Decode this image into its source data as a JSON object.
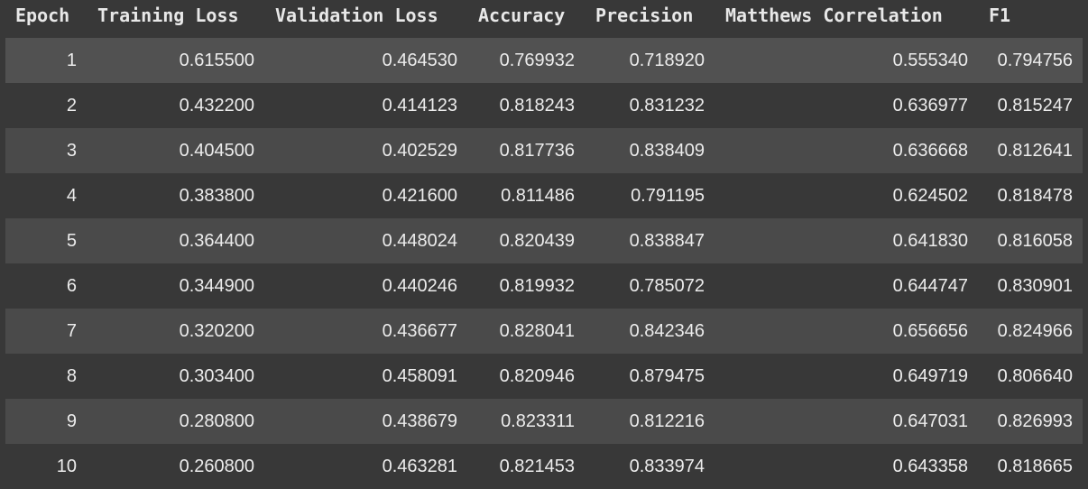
{
  "table": {
    "columns": [
      "Epoch",
      "Training Loss",
      "Validation Loss",
      "Accuracy",
      "Precision",
      "Matthews Correlation",
      "F1"
    ],
    "rows": [
      [
        "1",
        "0.615500",
        "0.464530",
        "0.769932",
        "0.718920",
        "0.555340",
        "0.794756"
      ],
      [
        "2",
        "0.432200",
        "0.414123",
        "0.818243",
        "0.831232",
        "0.636977",
        "0.815247"
      ],
      [
        "3",
        "0.404500",
        "0.402529",
        "0.817736",
        "0.838409",
        "0.636668",
        "0.812641"
      ],
      [
        "4",
        "0.383800",
        "0.421600",
        "0.811486",
        "0.791195",
        "0.624502",
        "0.818478"
      ],
      [
        "5",
        "0.364400",
        "0.448024",
        "0.820439",
        "0.838847",
        "0.641830",
        "0.816058"
      ],
      [
        "6",
        "0.344900",
        "0.440246",
        "0.819932",
        "0.785072",
        "0.644747",
        "0.830901"
      ],
      [
        "7",
        "0.320200",
        "0.436677",
        "0.828041",
        "0.842346",
        "0.656656",
        "0.824966"
      ],
      [
        "8",
        "0.303400",
        "0.458091",
        "0.820946",
        "0.879475",
        "0.649719",
        "0.806640"
      ],
      [
        "9",
        "0.280800",
        "0.438679",
        "0.823311",
        "0.812216",
        "0.647031",
        "0.826993"
      ],
      [
        "10",
        "0.260800",
        "0.463281",
        "0.821453",
        "0.833974",
        "0.643358",
        "0.818665"
      ]
    ]
  },
  "colors": {
    "background": "#383838",
    "row_alt": "#4a4a4a",
    "text": "#ececec"
  }
}
